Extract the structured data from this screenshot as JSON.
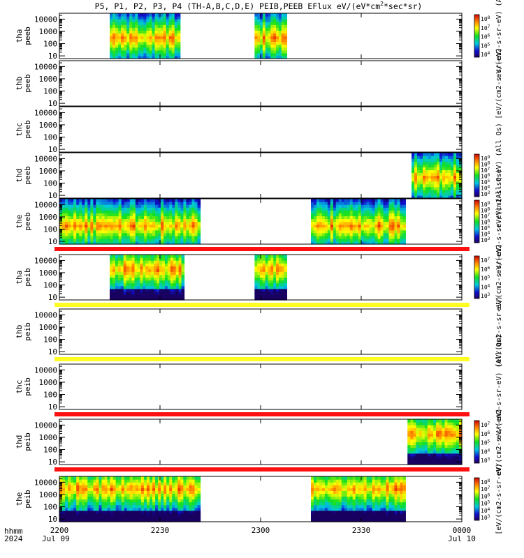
{
  "chart_data": {
    "type": "heatmap",
    "title": "P5, P1, P2, P3, P4 (TH-A,B,C,D,E) PEIB,PEEB EFlux eV/(eV*cm^2*sec*sr)",
    "title_parts": {
      "main": "P5, P1, P2, P3, P4 (TH-A,B,C,D,E) PEIB,PEEB EFlux eV/(eV*cm",
      "sup": "2",
      "tail": "*sec*sr)"
    },
    "x_axis": {
      "tick_labels": [
        "2200",
        "2230",
        "2300",
        "2330",
        "0000"
      ],
      "tick_values_hours": [
        0,
        0.5,
        1,
        1.5,
        2
      ],
      "range_hours": [
        0,
        2
      ],
      "unit_label": "hhmm",
      "year_label": "2024",
      "start_date_label": "Jul 09",
      "end_date_label": "Jul 10"
    },
    "y_axis": {
      "scale": "log",
      "tick_labels": [
        "10000",
        "1000",
        "100",
        "10"
      ],
      "tick_values": [
        10000,
        1000,
        100,
        10
      ],
      "range": [
        6,
        30000
      ]
    },
    "panels": [
      {
        "probe": "tha",
        "instrument": "peeb",
        "zlabel": "eV/(cm2-s-sr-eV) (Al",
        "colorbar_ticks": [
          "10^8",
          "10^7",
          "10^6",
          "10^5",
          "10^4"
        ],
        "data_intervals_hours": [
          [
            0.25,
            0.6
          ],
          [
            0.97,
            1.13
          ]
        ],
        "flux_peak_energy_eV": 300
      },
      {
        "probe": "thb",
        "instrument": "peeb",
        "zlabel": "[eV/(cm2-s-sr-eV)",
        "colorbar_ticks": [],
        "data_intervals_hours": []
      },
      {
        "probe": "thc",
        "instrument": "peeb",
        "zlabel": "",
        "colorbar_ticks": [],
        "data_intervals_hours": []
      },
      {
        "probe": "thd",
        "instrument": "peeb",
        "zlabel": "eV/(cm2-s-sr-eV) (All Qs)",
        "colorbar_ticks": [
          "10^9",
          "10^8",
          "10^7",
          "10^6",
          "10^5",
          "10^4",
          "10^3"
        ],
        "data_intervals_hours": [
          [
            1.75,
            2.0
          ]
        ],
        "flux_peak_energy_eV": 300
      },
      {
        "probe": "the",
        "instrument": "peeb",
        "zlabel": "eV/(cm2-s-sr-eV) (All Qs)",
        "colorbar_ticks": [
          "10^9",
          "10^8",
          "10^7",
          "10^6",
          "10^5",
          "10^4",
          "10^3"
        ],
        "data_intervals_hours": [
          [
            0.0,
            0.7
          ],
          [
            1.25,
            1.72
          ]
        ],
        "flux_peak_energy_eV": 200
      },
      {
        "probe": "tha",
        "instrument": "peib",
        "zlabel": "eV/(cm2-s-sr-eV)",
        "colorbar_ticks": [
          "10^7",
          "10^6",
          "10^5",
          "10^4",
          "10^3"
        ],
        "data_intervals_hours": [
          [
            0.25,
            0.62
          ],
          [
            0.97,
            1.13
          ]
        ],
        "flux_peak_energy_eV": 2000
      },
      {
        "probe": "thb",
        "instrument": "peib",
        "zlabel": "[eV/(cm2-s-sr-eV)",
        "colorbar_ticks": [],
        "data_intervals_hours": []
      },
      {
        "probe": "thc",
        "instrument": "peib",
        "zlabel": "eV/(cm2-s-sr-eV) (All Qs)",
        "colorbar_ticks": [],
        "data_intervals_hours": []
      },
      {
        "probe": "thd",
        "instrument": "peib",
        "zlabel": "eV/(cm2-s-sr-eV)",
        "colorbar_ticks": [
          "10^7",
          "10^6",
          "10^5",
          "10^4",
          "10^3"
        ],
        "data_intervals_hours": [
          [
            1.73,
            2.0
          ]
        ],
        "flux_peak_energy_eV": 2000
      },
      {
        "probe": "the",
        "instrument": "peib",
        "zlabel": "[eV/(cm2-s-sr-eV)",
        "colorbar_ticks": [
          "10^8",
          "10^7",
          "10^6",
          "10^5",
          "10^4",
          "10^3"
        ],
        "data_intervals_hours": [
          [
            0.0,
            0.7
          ],
          [
            1.25,
            1.72
          ]
        ],
        "flux_peak_energy_eV": 3000
      }
    ],
    "bars": [
      {
        "color": "#ff1010",
        "after_panel": 4
      },
      {
        "color": "#ffff22",
        "after_panel": 5
      },
      {
        "color": "#ffff22",
        "after_panel": 6
      },
      {
        "color": "#ff1010",
        "after_panel": 7
      },
      {
        "color": "#ff1010",
        "after_panel": 8
      }
    ],
    "colors": {
      "high": "#d60000",
      "mid_high": "#ffcc00",
      "mid": "#20e000",
      "mid_low": "#00c8d8",
      "low": "#1010c0",
      "floor": "#180060"
    }
  }
}
